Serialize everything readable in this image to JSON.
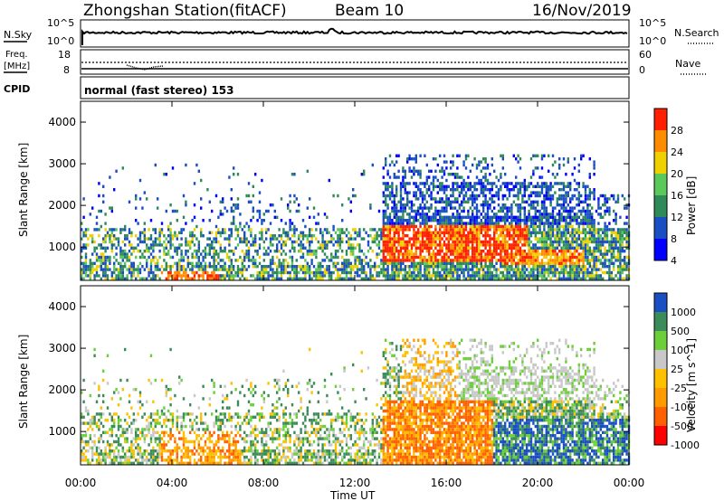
{
  "header": {
    "station": "Zhongshan Station",
    "mode": "(fitACF)",
    "beam": "Beam 10",
    "date": "16/Nov/2019"
  },
  "nsky_panel": {
    "left_label": "N.Sky",
    "right_label": "N.Search",
    "left_ticks": [
      "10^5",
      "10^0"
    ],
    "right_ticks": [
      "10^5",
      "10^0"
    ]
  },
  "freq_panel": {
    "left_label_line1": "Freq.",
    "left_label_line2": "[MHz]",
    "right_label": "Nave",
    "left_ticks": [
      "18",
      "8"
    ],
    "right_ticks": [
      "60",
      "0"
    ]
  },
  "cpid_panel": {
    "label": "CPID",
    "text": "normal (fast stereo) 153"
  },
  "x_axis": {
    "label": "Time UT",
    "ticks": [
      "00:00",
      "04:00",
      "08:00",
      "12:00",
      "16:00",
      "20:00",
      "00:00"
    ]
  },
  "chart_data": [
    {
      "type": "heatmap",
      "name": "power",
      "ylabel": "Slant Range [km]",
      "yticks": [
        "4000",
        "3000",
        "2000",
        "1000"
      ],
      "ylim": [
        200,
        4500
      ],
      "xlim": [
        0,
        24
      ],
      "colorbar": {
        "label": "Power [dB]",
        "ticks": [
          "28",
          "24",
          "20",
          "16",
          "12",
          "8",
          "4"
        ],
        "colors": [
          "#0000ff",
          "#1a4fc4",
          "#2e8b57",
          "#5ac85a",
          "#f0d000",
          "#ff8c00",
          "#ff2000"
        ]
      }
    },
    {
      "type": "heatmap",
      "name": "velocity",
      "ylabel": "Slant Range [km]",
      "yticks": [
        "4000",
        "3000",
        "2000",
        "1000"
      ],
      "ylim": [
        200,
        4500
      ],
      "xlim": [
        0,
        24
      ],
      "colorbar": {
        "label": "Velocity [m s^-1]",
        "ticks": [
          "1000",
          "500",
          "100",
          "25",
          "-25",
          "-100",
          "-500",
          "-1000"
        ],
        "colors": [
          "#ff0000",
          "#ff6000",
          "#ff9a00",
          "#ffc000",
          "#c8c8c8",
          "#6ccf3a",
          "#3c8c5a",
          "#1a4fc4"
        ]
      }
    }
  ]
}
